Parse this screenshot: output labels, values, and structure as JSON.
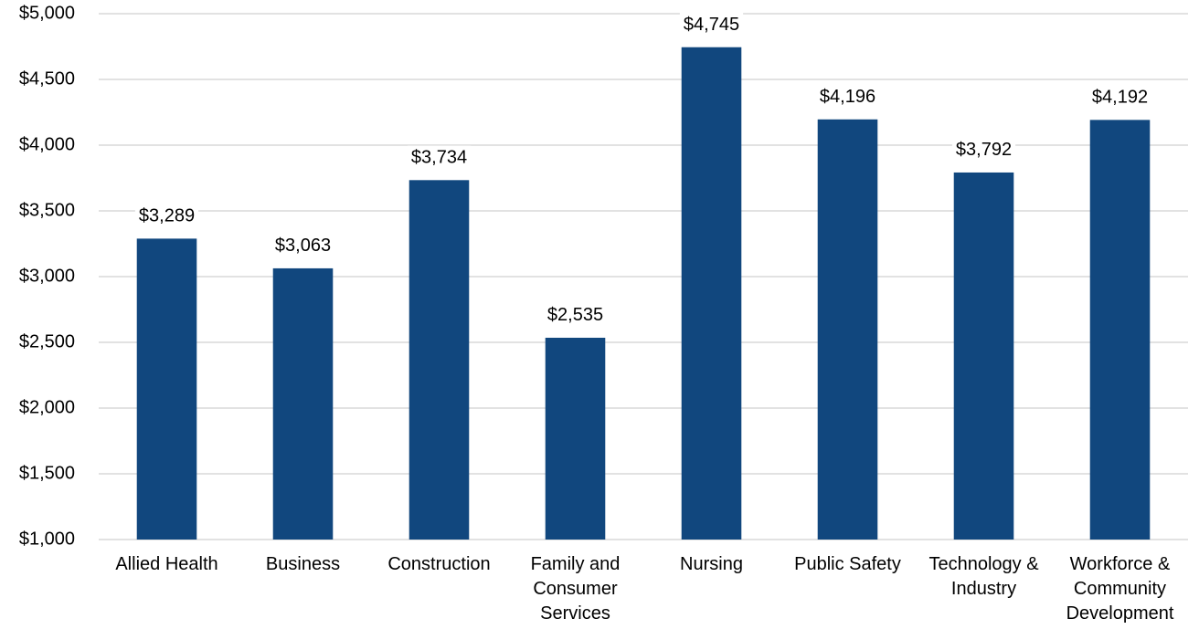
{
  "chart_data": {
    "type": "bar",
    "categories": [
      "Allied Health",
      "Business",
      "Construction",
      "Family and Consumer Services",
      "Nursing",
      "Public Safety",
      "Technology & Industry",
      "Workforce & Community Development"
    ],
    "values": [
      3289,
      3063,
      3734,
      2535,
      4745,
      4196,
      3792,
      4192
    ],
    "value_labels": [
      "$3,289",
      "$3,063",
      "$3,734",
      "$2,535",
      "$4,745",
      "$4,196",
      "$3,792",
      "$4,192"
    ],
    "color": "#11477e",
    "ylim": [
      1000,
      5000
    ],
    "yticks": [
      {
        "value": 1000,
        "label": "$1,000"
      },
      {
        "value": 1500,
        "label": "$1,500"
      },
      {
        "value": 2000,
        "label": "$2,000"
      },
      {
        "value": 2500,
        "label": "$2,500"
      },
      {
        "value": 3000,
        "label": "$3,000"
      },
      {
        "value": 3500,
        "label": "$3,500"
      },
      {
        "value": 4000,
        "label": "$4,000"
      },
      {
        "value": 4500,
        "label": "$4,500"
      },
      {
        "value": 5000,
        "label": "$5,000"
      }
    ],
    "grid": true
  }
}
